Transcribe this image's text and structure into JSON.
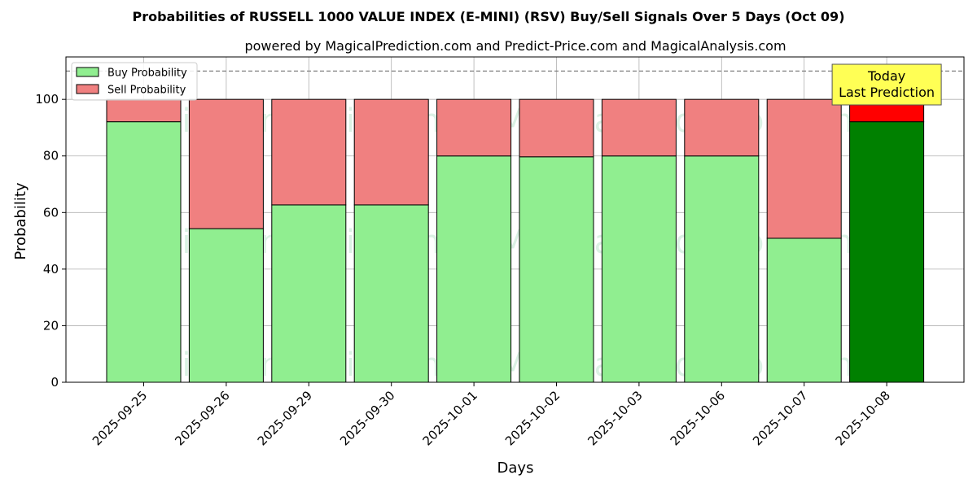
{
  "chart_data": {
    "type": "bar",
    "stacked": true,
    "title": "Probabilities of RUSSELL 1000 VALUE INDEX (E-MINI) (RSV) Buy/Sell Signals Over 5 Days (Oct 09)",
    "subtitle": "powered by MagicalPrediction.com and Predict-Price.com and MagicalAnalysis.com",
    "xlabel": "Days",
    "ylabel": "Probability",
    "ylim": [
      0,
      115
    ],
    "yticks": [
      0,
      20,
      40,
      60,
      80,
      100
    ],
    "grid": true,
    "reference_line": 110,
    "legend_position": "top-left",
    "categories": [
      "2025-09-25",
      "2025-09-26",
      "2025-09-29",
      "2025-09-30",
      "2025-10-01",
      "2025-10-02",
      "2025-10-03",
      "2025-10-06",
      "2025-10-07",
      "2025-10-08"
    ],
    "series": [
      {
        "name": "Buy Probability",
        "color": "#90ee90",
        "highlight_color": "#008000",
        "values": [
          92.1,
          54.3,
          62.7,
          62.7,
          80.0,
          79.7,
          80.0,
          80.0,
          50.9,
          92.1
        ]
      },
      {
        "name": "Sell Probability",
        "color": "#f08080",
        "highlight_color": "#ff0000",
        "values": [
          7.9,
          45.7,
          37.3,
          37.3,
          20.0,
          20.3,
          20.0,
          20.0,
          49.1,
          7.9
        ]
      }
    ],
    "highlight_index": 9,
    "annotation": {
      "lines": [
        "Today",
        "Last Prediction"
      ],
      "box_color": "#ffff55"
    },
    "watermarks": [
      "MagicalAnalysis.com",
      "MagicalPrediction.com"
    ]
  }
}
